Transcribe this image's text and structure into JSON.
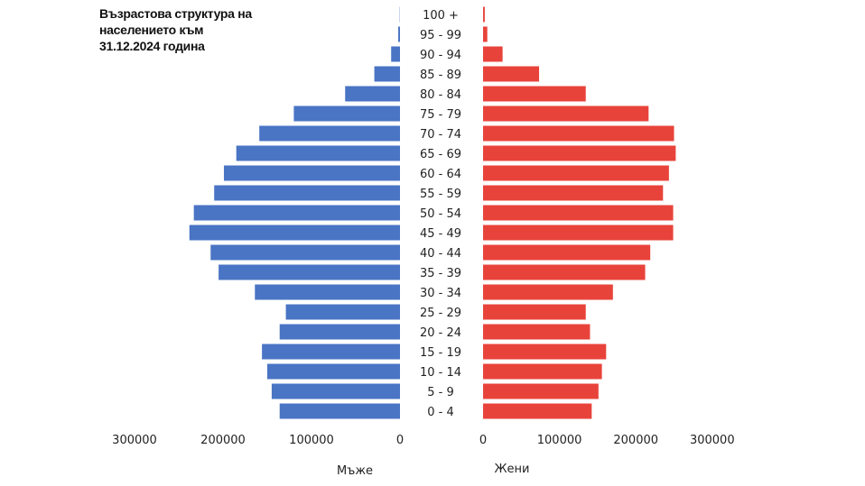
{
  "chart_data": {
    "type": "bar",
    "orientation": "horizontal",
    "subtype": "population-pyramid",
    "title": [
      "Възрастова структура на",
      "населението към",
      "31.12.2024 година"
    ],
    "categories": [
      "100 +",
      "95 - 99",
      "90 - 94",
      "85 - 89",
      "80 - 84",
      "75 - 79",
      "70 - 74",
      "65 - 69",
      "60 - 64",
      "55 - 59",
      "50 - 54",
      "45 - 49",
      "40 - 44",
      "35 - 39",
      "30 - 34",
      "25 - 29",
      "20 - 24",
      "15 - 19",
      "10 - 14",
      "5 - 9",
      "0 - 4"
    ],
    "series": [
      {
        "name": "Мъже",
        "color": "#4a74c4",
        "values": [
          300,
          2000,
          10000,
          29000,
          62000,
          120000,
          159000,
          185000,
          199000,
          210000,
          233000,
          238000,
          214000,
          205000,
          164000,
          129000,
          136000,
          156000,
          150000,
          145000,
          136000
        ]
      },
      {
        "name": "Жени",
        "color": "#e8433b",
        "values": [
          2000,
          5000,
          23000,
          66000,
          121000,
          195000,
          225000,
          227000,
          219000,
          212000,
          224000,
          224000,
          197000,
          191000,
          153000,
          121000,
          126000,
          145000,
          140000,
          136000,
          128000
        ]
      }
    ],
    "left_ticks": [
      "300000",
      "200000",
      "100000",
      "0"
    ],
    "right_ticks": [
      "0",
      "100000",
      "200000",
      "300000"
    ],
    "xlim": [
      0,
      300000
    ],
    "grid": false,
    "legend": "none"
  }
}
